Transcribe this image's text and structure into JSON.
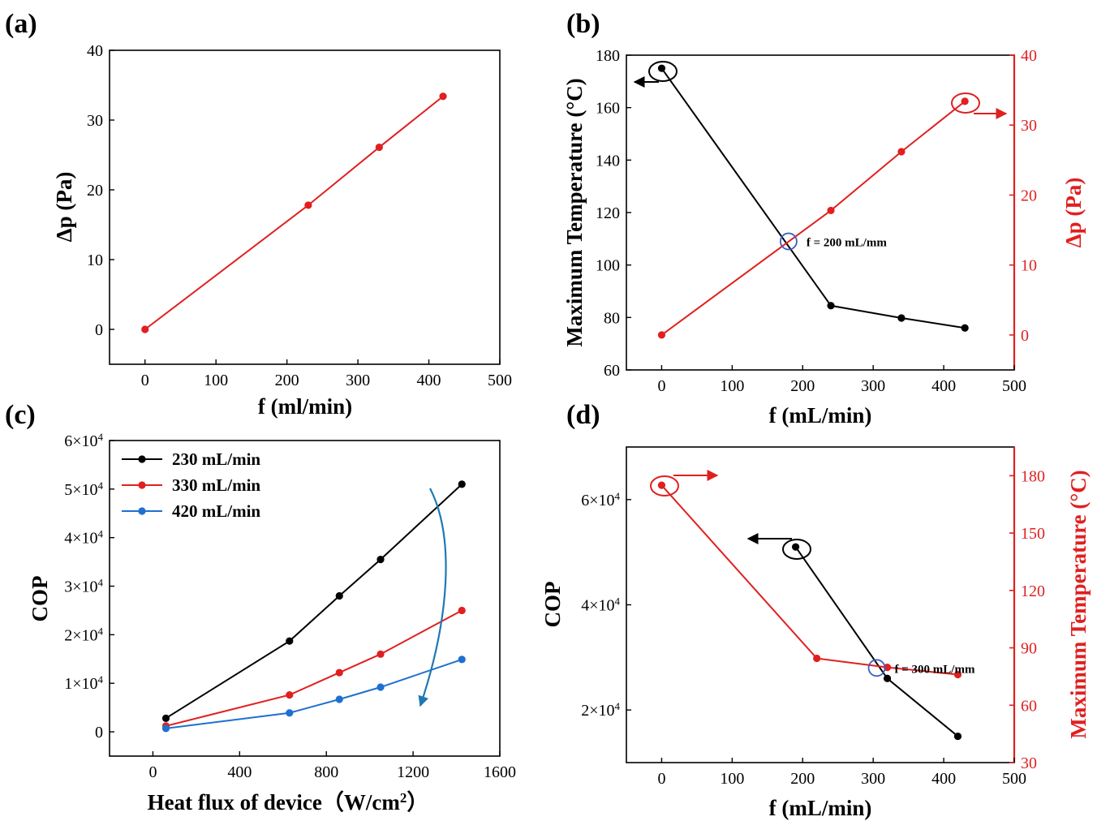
{
  "chart_data": [
    {
      "id": "a",
      "panel_label": "(a)",
      "type": "line",
      "xlabel": "f (ml/min)",
      "ylabel": "Δp (Pa)",
      "xlim": [
        -50,
        500
      ],
      "ylim": [
        -5,
        40
      ],
      "xticks": [
        0,
        100,
        200,
        300,
        400,
        500
      ],
      "yticks": [
        0,
        10,
        20,
        30,
        40
      ],
      "xtick_labels": [
        "0",
        "100",
        "200",
        "300",
        "400",
        "500"
      ],
      "ytick_labels": [
        "0",
        "10",
        "20",
        "30",
        "40"
      ],
      "series": [
        {
          "name": "Δp",
          "color": "#e02020",
          "x": [
            0,
            230,
            330,
            420
          ],
          "y": [
            0,
            17.8,
            26.1,
            33.4
          ]
        }
      ]
    },
    {
      "id": "b",
      "panel_label": "(b)",
      "type": "line",
      "xlabel": "f (mL/min)",
      "ylabel": "Maximum Temperature (°C)",
      "ylabel2": "Δp (Pa)",
      "xlim": [
        -50,
        500
      ],
      "ylim": [
        60,
        180
      ],
      "ylim2": [
        -5,
        40
      ],
      "xticks": [
        0,
        100,
        200,
        300,
        400,
        500
      ],
      "yticks": [
        60,
        80,
        100,
        120,
        140,
        160,
        180
      ],
      "yticks2": [
        0,
        10,
        20,
        30,
        40
      ],
      "xtick_labels": [
        "0",
        "100",
        "200",
        "300",
        "400",
        "500"
      ],
      "ytick_labels": [
        "60",
        "80",
        "100",
        "120",
        "140",
        "160",
        "180"
      ],
      "ytick_labels2": [
        "0",
        "10",
        "20",
        "30",
        "40"
      ],
      "series": [
        {
          "name": "Maximum Temperature",
          "axis": "left",
          "color": "#000000",
          "x": [
            0,
            240,
            340,
            430
          ],
          "y": [
            175,
            84.5,
            79.8,
            76
          ]
        },
        {
          "name": "Δp",
          "axis": "right",
          "color": "#e02020",
          "x": [
            0,
            240,
            340,
            430
          ],
          "y": [
            0,
            17.8,
            26.2,
            33.4
          ]
        }
      ],
      "annotations": [
        {
          "text": "f = 200 mL/mm",
          "x": 180,
          "y": 109
        }
      ]
    },
    {
      "id": "c",
      "panel_label": "(c)",
      "type": "line",
      "xlabel": "Heat flux of device（W/cm",
      "xlabel_sup": "2",
      "xlabel_tail": "）",
      "ylabel": "COP",
      "xlim": [
        -200,
        1600
      ],
      "ylim": [
        -5000,
        60000
      ],
      "xticks": [
        0,
        400,
        800,
        1200,
        1600
      ],
      "yticks": [
        0,
        10000,
        20000,
        30000,
        40000,
        50000,
        60000
      ],
      "xtick_labels": [
        "0",
        "400",
        "800",
        "1200",
        "1600"
      ],
      "ytick_labels": [
        "0",
        "1×10",
        "2×10",
        "3×10",
        "4×10",
        "5×10",
        "6×10"
      ],
      "ytick_exp": "4",
      "legend": [
        "230 mL/min",
        "330 mL/min",
        "420 mL/min"
      ],
      "series": [
        {
          "name": "230 mL/min",
          "color": "#000000",
          "x": [
            60,
            630,
            860,
            1050,
            1425
          ],
          "y": [
            2800,
            18700,
            28000,
            35500,
            51000
          ]
        },
        {
          "name": "330 mL/min",
          "color": "#e02020",
          "x": [
            60,
            630,
            860,
            1050,
            1425
          ],
          "y": [
            1200,
            7600,
            12200,
            16000,
            25000
          ]
        },
        {
          "name": "420 mL/min",
          "color": "#1f6fd0",
          "x": [
            60,
            630,
            860,
            1050,
            1425
          ],
          "y": [
            700,
            3900,
            6700,
            9200,
            14900
          ]
        }
      ]
    },
    {
      "id": "d",
      "panel_label": "(d)",
      "type": "line",
      "xlabel": "f (mL/min)",
      "ylabel": "COP",
      "ylabel2": "Maximum Temperature (°C)",
      "xlim": [
        -50,
        500
      ],
      "ylim": [
        10000,
        70000
      ],
      "ylim2": [
        30,
        195
      ],
      "xticks": [
        0,
        100,
        200,
        300,
        400,
        500
      ],
      "yticks": [
        20000,
        40000,
        60000
      ],
      "yticks2": [
        30,
        60,
        90,
        120,
        150,
        180
      ],
      "xtick_labels": [
        "0",
        "100",
        "200",
        "300",
        "400",
        "500"
      ],
      "ytick_labels": [
        "2×10",
        "4×10",
        "6×10"
      ],
      "ytick_exp": "4",
      "ytick_labels2": [
        "30",
        "60",
        "90",
        "120",
        "150",
        "180"
      ],
      "series": [
        {
          "name": "COP",
          "axis": "left",
          "color": "#000000",
          "x": [
            190,
            320,
            420
          ],
          "y": [
            51000,
            26000,
            15000
          ]
        },
        {
          "name": "Maximum Temperature",
          "axis": "right",
          "color": "#e02020",
          "x": [
            0,
            220,
            320,
            420
          ],
          "y": [
            175,
            84.5,
            79.8,
            76
          ]
        }
      ],
      "annotations": [
        {
          "text": "f = 300 mL/mm",
          "x": 305,
          "y": 28000
        }
      ]
    }
  ]
}
